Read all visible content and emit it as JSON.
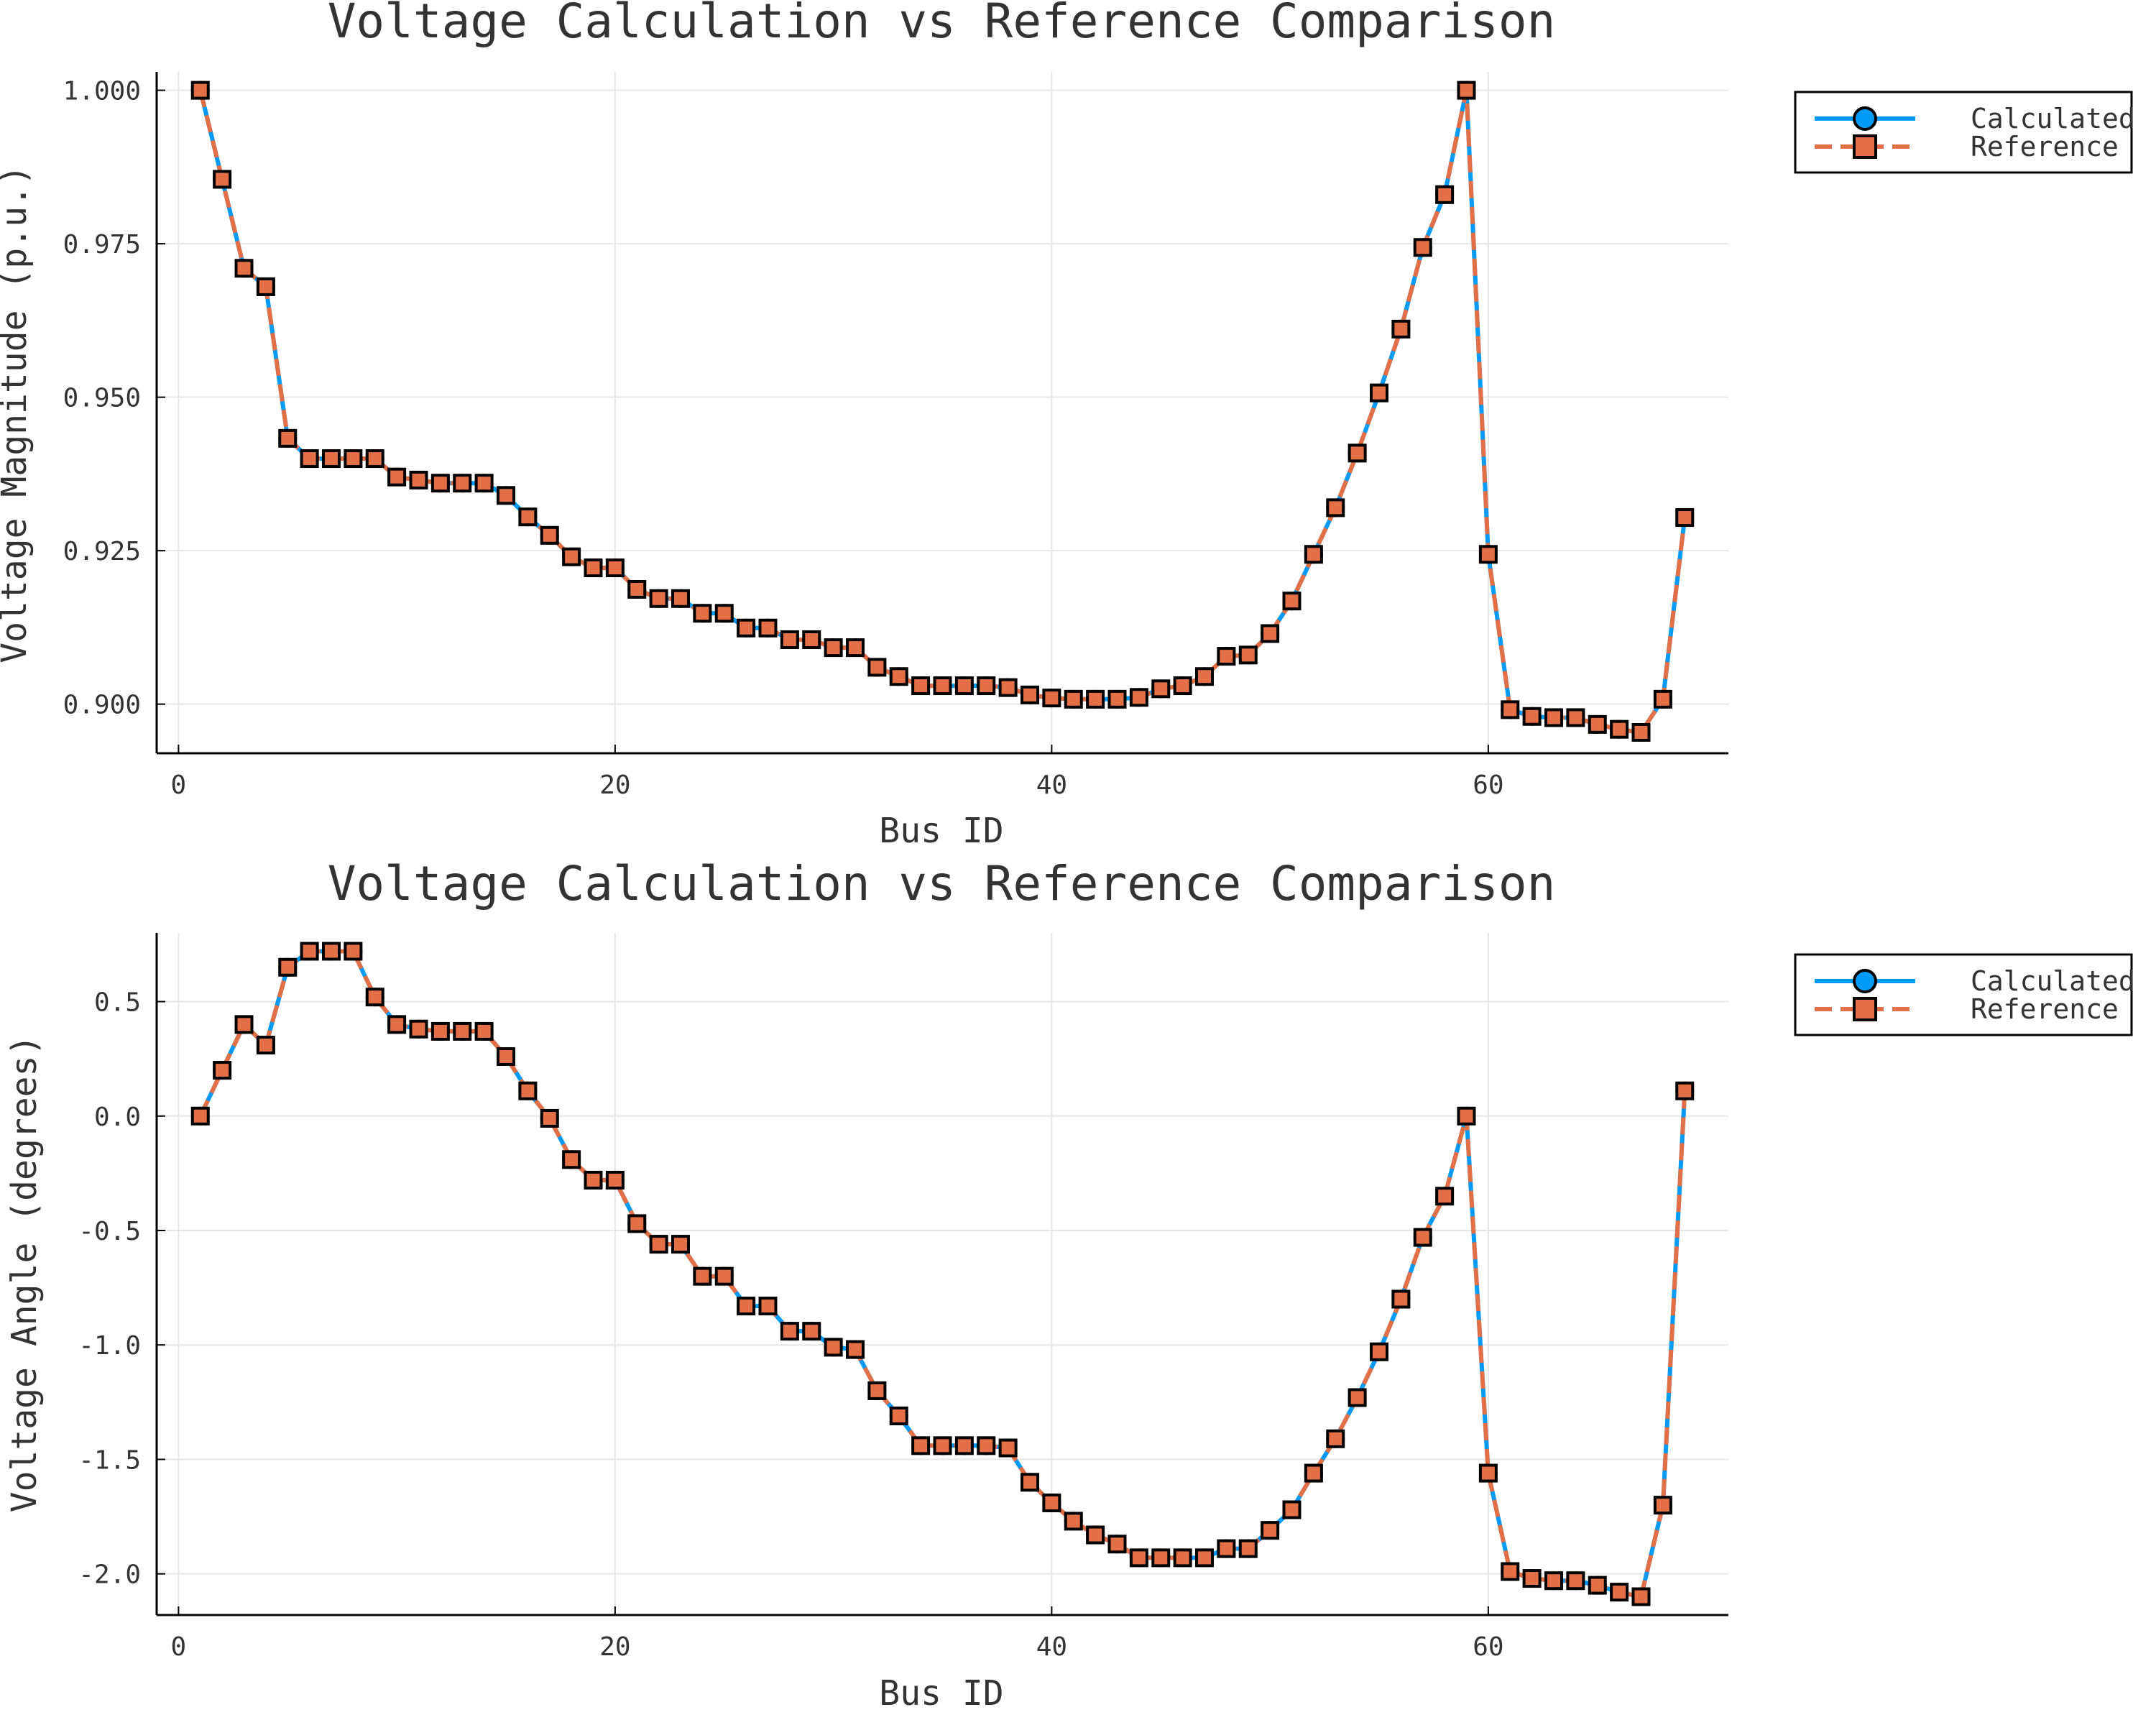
{
  "chart_data": [
    {
      "type": "line",
      "title": "Voltage Calculation vs Reference Comparison",
      "xlabel": "Bus ID",
      "ylabel": "Voltage Magnitude (p.u.)",
      "xlim": [
        -1,
        71
      ],
      "ylim": [
        0.892,
        1.003
      ],
      "xticks": [
        0,
        20,
        40,
        60
      ],
      "xtick_labels": [
        "0",
        "20",
        "40",
        "60"
      ],
      "yticks": [
        0.9,
        0.925,
        0.95,
        0.975,
        1.0
      ],
      "ytick_labels": [
        "0.900",
        "0.925",
        "0.950",
        "0.975",
        "1.000"
      ],
      "grid": true,
      "legend_position": "outer-top-right",
      "x": [
        1,
        2,
        3,
        4,
        5,
        6,
        7,
        8,
        9,
        10,
        11,
        12,
        13,
        14,
        15,
        16,
        17,
        18,
        19,
        20,
        21,
        22,
        23,
        24,
        25,
        26,
        27,
        28,
        29,
        30,
        31,
        32,
        33,
        34,
        35,
        36,
        37,
        38,
        39,
        40,
        41,
        42,
        43,
        44,
        45,
        46,
        47,
        48,
        49,
        50,
        51,
        52,
        53,
        54,
        55,
        56,
        57,
        58,
        59,
        60,
        61,
        62,
        63,
        64,
        65,
        66,
        67,
        68,
        69
      ],
      "series": [
        {
          "name": "Calculated",
          "color": "#009af9",
          "line": "solid",
          "marker": "circle",
          "values": [
            1.0,
            0.9855,
            0.971,
            0.968,
            0.9433,
            0.94,
            0.94,
            0.94,
            0.94,
            0.937,
            0.9365,
            0.936,
            0.936,
            0.936,
            0.934,
            0.9305,
            0.9275,
            0.924,
            0.9222,
            0.9222,
            0.9187,
            0.9172,
            0.9172,
            0.9148,
            0.9148,
            0.9124,
            0.9124,
            0.9105,
            0.9105,
            0.9092,
            0.9092,
            0.906,
            0.9045,
            0.903,
            0.903,
            0.903,
            0.903,
            0.9027,
            0.9015,
            0.901,
            0.9008,
            0.9008,
            0.9008,
            0.9011,
            0.9025,
            0.903,
            0.9045,
            0.9078,
            0.908,
            0.9115,
            0.9168,
            0.9244,
            0.932,
            0.9409,
            0.9507,
            0.9611,
            0.9744,
            0.983,
            1.0,
            0.9244,
            0.8991,
            0.898,
            0.8978,
            0.8978,
            0.8967,
            0.8959,
            0.8954,
            0.9008,
            0.9304
          ]
        },
        {
          "name": "Reference",
          "color": "#e26f46",
          "line": "dashed",
          "marker": "square",
          "values": [
            1.0,
            0.9855,
            0.971,
            0.968,
            0.9433,
            0.94,
            0.94,
            0.94,
            0.94,
            0.937,
            0.9365,
            0.936,
            0.936,
            0.936,
            0.934,
            0.9305,
            0.9275,
            0.924,
            0.9222,
            0.9222,
            0.9187,
            0.9172,
            0.9172,
            0.9148,
            0.9148,
            0.9124,
            0.9124,
            0.9105,
            0.9105,
            0.9092,
            0.9092,
            0.906,
            0.9045,
            0.903,
            0.903,
            0.903,
            0.903,
            0.9027,
            0.9015,
            0.901,
            0.9008,
            0.9008,
            0.9008,
            0.9011,
            0.9025,
            0.903,
            0.9045,
            0.9078,
            0.908,
            0.9115,
            0.9168,
            0.9244,
            0.932,
            0.9409,
            0.9507,
            0.9611,
            0.9744,
            0.983,
            1.0,
            0.9244,
            0.8991,
            0.898,
            0.8978,
            0.8978,
            0.8967,
            0.8959,
            0.8954,
            0.9008,
            0.9304
          ]
        }
      ]
    },
    {
      "type": "line",
      "title": "Voltage Calculation vs Reference Comparison",
      "xlabel": "Bus ID",
      "ylabel": "Voltage Angle (degrees)",
      "xlim": [
        -1,
        71
      ],
      "ylim": [
        -2.18,
        0.8
      ],
      "xticks": [
        0,
        20,
        40,
        60
      ],
      "xtick_labels": [
        "0",
        "20",
        "40",
        "60"
      ],
      "yticks": [
        0.5,
        0.0,
        -0.5,
        -1.0,
        -1.5,
        -2.0
      ],
      "ytick_labels": [
        "0.5",
        "0.0",
        "-0.5",
        "-1.0",
        "-1.5",
        "-2.0"
      ],
      "grid": true,
      "legend_position": "outer-top-right",
      "x": [
        1,
        2,
        3,
        4,
        5,
        6,
        7,
        8,
        9,
        10,
        11,
        12,
        13,
        14,
        15,
        16,
        17,
        18,
        19,
        20,
        21,
        22,
        23,
        24,
        25,
        26,
        27,
        28,
        29,
        30,
        31,
        32,
        33,
        34,
        35,
        36,
        37,
        38,
        39,
        40,
        41,
        42,
        43,
        44,
        45,
        46,
        47,
        48,
        49,
        50,
        51,
        52,
        53,
        54,
        55,
        56,
        57,
        58,
        59,
        60,
        61,
        62,
        63,
        64,
        65,
        66,
        67,
        68,
        69
      ],
      "series": [
        {
          "name": "Calculated",
          "color": "#009af9",
          "line": "solid",
          "marker": "circle",
          "values": [
            0.0,
            0.2,
            0.4,
            0.31,
            0.65,
            0.72,
            0.72,
            0.72,
            0.52,
            0.4,
            0.38,
            0.37,
            0.37,
            0.37,
            0.26,
            0.11,
            -0.01,
            -0.19,
            -0.28,
            -0.28,
            -0.47,
            -0.56,
            -0.56,
            -0.7,
            -0.7,
            -0.83,
            -0.83,
            -0.94,
            -0.94,
            -1.01,
            -1.02,
            -1.2,
            -1.31,
            -1.44,
            -1.44,
            -1.44,
            -1.44,
            -1.45,
            -1.6,
            -1.69,
            -1.77,
            -1.83,
            -1.87,
            -1.93,
            -1.93,
            -1.93,
            -1.93,
            -1.89,
            -1.89,
            -1.81,
            -1.72,
            -1.56,
            -1.41,
            -1.23,
            -1.03,
            -0.8,
            -0.53,
            -0.35,
            0.0,
            -1.56,
            -1.99,
            -2.02,
            -2.03,
            -2.03,
            -2.05,
            -2.08,
            -2.1,
            -1.7,
            0.11
          ]
        },
        {
          "name": "Reference",
          "color": "#e26f46",
          "line": "dashed",
          "marker": "square",
          "values": [
            0.0,
            0.2,
            0.4,
            0.31,
            0.65,
            0.72,
            0.72,
            0.72,
            0.52,
            0.4,
            0.38,
            0.37,
            0.37,
            0.37,
            0.26,
            0.11,
            -0.01,
            -0.19,
            -0.28,
            -0.28,
            -0.47,
            -0.56,
            -0.56,
            -0.7,
            -0.7,
            -0.83,
            -0.83,
            -0.94,
            -0.94,
            -1.01,
            -1.02,
            -1.2,
            -1.31,
            -1.44,
            -1.44,
            -1.44,
            -1.44,
            -1.45,
            -1.6,
            -1.69,
            -1.77,
            -1.83,
            -1.87,
            -1.93,
            -1.93,
            -1.93,
            -1.93,
            -1.89,
            -1.89,
            -1.81,
            -1.72,
            -1.56,
            -1.41,
            -1.23,
            -1.03,
            -0.8,
            -0.53,
            -0.35,
            0.0,
            -1.56,
            -1.99,
            -2.02,
            -2.03,
            -2.03,
            -2.05,
            -2.08,
            -2.1,
            -1.7,
            0.11
          ]
        }
      ]
    }
  ]
}
